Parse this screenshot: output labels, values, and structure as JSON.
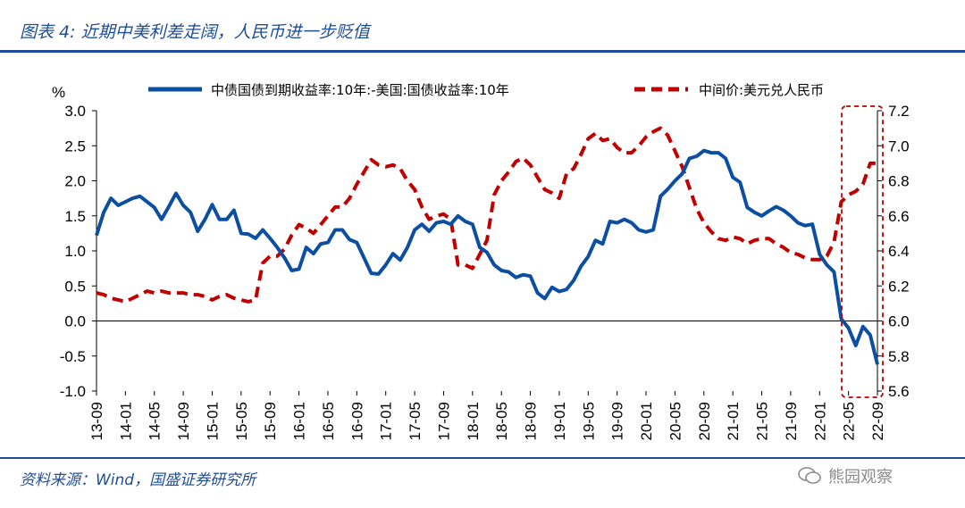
{
  "title": "图表 4:  近期中美利差走阔，人民币进一步贬值",
  "source": "资料来源：Wind，国盛证券研究所",
  "watermark": "熊园观察",
  "colors": {
    "accent": "#1f4e96",
    "series1": "#0b4ea2",
    "series2": "#c00000"
  },
  "chart_data": {
    "type": "line",
    "left_unit": "%",
    "left_ylim": [
      -1.0,
      3.0
    ],
    "left_ticks": [
      "3.0",
      "2.5",
      "2.0",
      "1.5",
      "1.0",
      "0.5",
      "0.0",
      "-0.5",
      "-1.0"
    ],
    "right_ylim": [
      5.6,
      7.2
    ],
    "right_ticks": [
      "7.2",
      "7.0",
      "6.8",
      "6.6",
      "6.4",
      "6.2",
      "6.0",
      "5.8",
      "5.6"
    ],
    "x_ticks": [
      "13-09",
      "14-01",
      "14-05",
      "14-09",
      "15-01",
      "15-05",
      "15-09",
      "16-01",
      "16-05",
      "16-09",
      "17-01",
      "17-05",
      "17-09",
      "18-01",
      "18-05",
      "18-09",
      "19-01",
      "19-05",
      "19-09",
      "20-01",
      "20-05",
      "20-09",
      "21-01",
      "21-05",
      "21-09",
      "22-01",
      "22-05",
      "22-09"
    ],
    "x": [
      0,
      1,
      2,
      3,
      4,
      5,
      6,
      7,
      8,
      9,
      10,
      11,
      12,
      13,
      14,
      15,
      16,
      17,
      18,
      19,
      20,
      21,
      22,
      23,
      24,
      25,
      26,
      27,
      28,
      29,
      30,
      31,
      32,
      33,
      34,
      35,
      36,
      37,
      38,
      39,
      40,
      41,
      42,
      43,
      44,
      45,
      46,
      47,
      48,
      49,
      50,
      51,
      52,
      53,
      54,
      55,
      56,
      57,
      58,
      59,
      60,
      61,
      62,
      63,
      64,
      65,
      66,
      67,
      68,
      69,
      70,
      71,
      72,
      73,
      74,
      75,
      76,
      77,
      78,
      79,
      80,
      81,
      82,
      83,
      84,
      85,
      86,
      87,
      88,
      89,
      90,
      91,
      92,
      93,
      94,
      95,
      96,
      97,
      98,
      99,
      100,
      101,
      102,
      103,
      104,
      105,
      106,
      107,
      108
    ],
    "series": [
      {
        "name": "中债国债到期收益率:10年:-美国:国债收益率:10年",
        "axis": "left",
        "values": [
          1.22,
          1.55,
          1.75,
          1.65,
          1.7,
          1.75,
          1.78,
          1.7,
          1.62,
          1.45,
          1.63,
          1.82,
          1.65,
          1.55,
          1.28,
          1.45,
          1.66,
          1.45,
          1.45,
          1.58,
          1.25,
          1.24,
          1.18,
          1.3,
          1.18,
          1.05,
          0.9,
          0.72,
          0.74,
          1.05,
          0.96,
          1.1,
          1.12,
          1.3,
          1.3,
          1.16,
          1.12,
          0.9,
          0.68,
          0.67,
          0.8,
          0.96,
          0.87,
          1.05,
          1.3,
          1.38,
          1.28,
          1.4,
          1.42,
          1.38,
          1.5,
          1.42,
          1.38,
          1.05,
          0.98,
          0.8,
          0.72,
          0.7,
          0.62,
          0.66,
          0.64,
          0.4,
          0.32,
          0.48,
          0.42,
          0.45,
          0.58,
          0.78,
          0.92,
          1.15,
          1.1,
          1.42,
          1.4,
          1.45,
          1.4,
          1.3,
          1.27,
          1.3,
          1.78,
          1.88,
          2.0,
          2.1,
          2.32,
          2.35,
          2.43,
          2.4,
          2.4,
          2.32,
          2.05,
          1.98,
          1.62,
          1.55,
          1.5,
          1.57,
          1.63,
          1.58,
          1.5,
          1.4,
          1.36,
          1.38,
          0.95,
          0.8,
          0.7,
          0.03,
          -0.1,
          -0.35,
          -0.08,
          -0.2,
          -0.62
        ]
      },
      {
        "name": "中间价:美元兑人民币",
        "axis": "right",
        "values": [
          6.16,
          6.15,
          6.13,
          6.12,
          6.11,
          6.13,
          6.15,
          6.17,
          6.16,
          6.17,
          6.16,
          6.16,
          6.16,
          6.15,
          6.15,
          6.14,
          6.12,
          6.14,
          6.15,
          6.13,
          6.12,
          6.11,
          6.12,
          6.33,
          6.37,
          6.37,
          6.41,
          6.49,
          6.55,
          6.53,
          6.5,
          6.55,
          6.6,
          6.65,
          6.65,
          6.7,
          6.78,
          6.85,
          6.92,
          6.89,
          6.88,
          6.89,
          6.87,
          6.8,
          6.75,
          6.65,
          6.58,
          6.6,
          6.61,
          6.58,
          6.32,
          6.32,
          6.3,
          6.38,
          6.46,
          6.72,
          6.8,
          6.85,
          6.91,
          6.93,
          6.89,
          6.82,
          6.75,
          6.73,
          6.7,
          6.84,
          6.87,
          6.95,
          7.04,
          7.07,
          7.03,
          7.04,
          6.99,
          6.96,
          6.96,
          7.0,
          7.05,
          7.08,
          7.1,
          7.06,
          6.97,
          6.88,
          6.76,
          6.64,
          6.56,
          6.51,
          6.47,
          6.46,
          6.48,
          6.47,
          6.44,
          6.46,
          6.47,
          6.47,
          6.44,
          6.42,
          6.39,
          6.38,
          6.36,
          6.35,
          6.35,
          6.37,
          6.45,
          6.68,
          6.72,
          6.74,
          6.78,
          6.9,
          6.9
        ]
      }
    ]
  }
}
